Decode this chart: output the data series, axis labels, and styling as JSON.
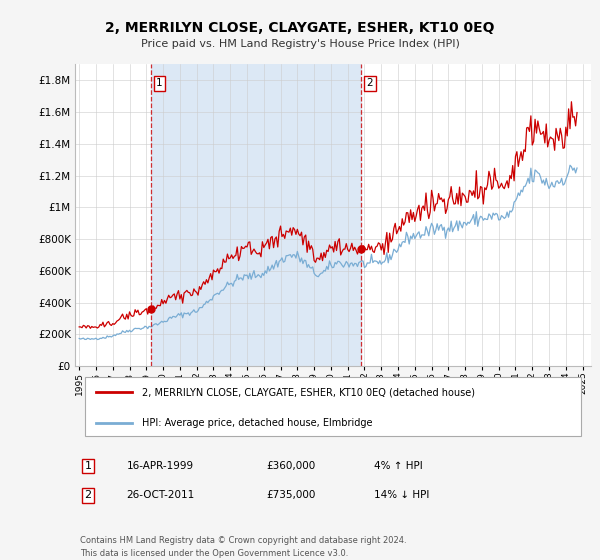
{
  "title": "2, MERRILYN CLOSE, CLAYGATE, ESHER, KT10 0EQ",
  "subtitle": "Price paid vs. HM Land Registry's House Price Index (HPI)",
  "ylim": [
    0,
    1900000
  ],
  "yticks": [
    0,
    200000,
    400000,
    600000,
    800000,
    1000000,
    1200000,
    1400000,
    1600000,
    1800000
  ],
  "ytick_labels": [
    "£0",
    "£200K",
    "£400K",
    "£600K",
    "£800K",
    "£1M",
    "£1.2M",
    "£1.4M",
    "£1.6M",
    "£1.8M"
  ],
  "sale1_date": 1999.29,
  "sale1_price": 360000,
  "sale2_date": 2011.81,
  "sale2_price": 735000,
  "legend_property": "2, MERRILYN CLOSE, CLAYGATE, ESHER, KT10 0EQ (detached house)",
  "legend_hpi": "HPI: Average price, detached house, Elmbridge",
  "table_row1": [
    "1",
    "16-APR-1999",
    "£360,000",
    "4% ↑ HPI"
  ],
  "table_row2": [
    "2",
    "26-OCT-2011",
    "£735,000",
    "14% ↓ HPI"
  ],
  "footer": "Contains HM Land Registry data © Crown copyright and database right 2024.\nThis data is licensed under the Open Government Licence v3.0.",
  "property_color": "#cc0000",
  "hpi_color": "#7aadd4",
  "shade_color": "#dce8f5",
  "dashed_vline_color": "#cc0000",
  "background_color": "#f5f5f5",
  "plot_bg_color": "#ffffff",
  "xlim": [
    1994.75,
    2025.5
  ],
  "xticks": [
    1995,
    1996,
    1997,
    1998,
    1999,
    2000,
    2001,
    2002,
    2003,
    2004,
    2005,
    2006,
    2007,
    2008,
    2009,
    2010,
    2011,
    2012,
    2013,
    2014,
    2015,
    2016,
    2017,
    2018,
    2019,
    2020,
    2021,
    2022,
    2023,
    2024,
    2025
  ]
}
